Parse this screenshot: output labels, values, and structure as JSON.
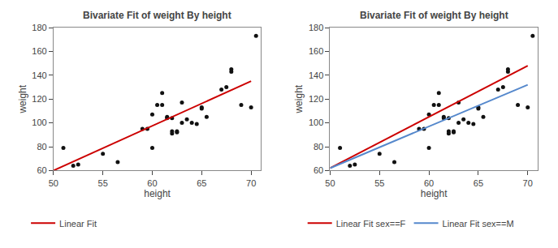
{
  "chart_data": [
    {
      "type": "scatter",
      "title": "Bivariate Fit of weight By height",
      "xlabel": "height",
      "ylabel": "weight",
      "xlim": [
        50,
        71
      ],
      "ylim": [
        60,
        180
      ],
      "xticks": [
        50,
        55,
        60,
        65,
        70
      ],
      "yticks": [
        60,
        80,
        100,
        120,
        140,
        160,
        180
      ],
      "grid": false,
      "legend": "bottom",
      "series": [
        {
          "type": "scatter",
          "marker": "circle",
          "color": "#111111",
          "x": [
            51.0,
            52.0,
            52.5,
            55.0,
            56.5,
            59.0,
            59.5,
            60.0,
            60.0,
            60.5,
            61.0,
            61.0,
            61.5,
            61.5,
            62.0,
            62.0,
            62.0,
            62.5,
            62.5,
            63.0,
            63.0,
            63.5,
            64.0,
            64.5,
            65.0,
            65.0,
            65.5,
            67.0,
            67.5,
            68.0,
            68.0,
            69.0,
            70.0,
            70.5
          ],
          "values": [
            79,
            64,
            65,
            74,
            67,
            95,
            95,
            79,
            107,
            115,
            115,
            125,
            105,
            104,
            91,
            93,
            104,
            92,
            93,
            117,
            100,
            103,
            100,
            99,
            113,
            112,
            105,
            128,
            130,
            143,
            145,
            115,
            113,
            173
          ]
        },
        {
          "type": "line",
          "name": "Linear Fit",
          "color": "#cc0000",
          "x": [
            50,
            70
          ],
          "values": [
            60,
            135
          ]
        }
      ]
    },
    {
      "type": "scatter",
      "title": "Bivariate Fit of weight By height",
      "xlabel": "height",
      "ylabel": "weight",
      "xlim": [
        50,
        71
      ],
      "ylim": [
        60,
        180
      ],
      "xticks": [
        50,
        55,
        60,
        65,
        70
      ],
      "yticks": [
        60,
        80,
        100,
        120,
        140,
        160,
        180
      ],
      "grid": false,
      "legend": "bottom",
      "series": [
        {
          "type": "scatter",
          "marker": "circle",
          "color": "#111111",
          "x": [
            51.0,
            52.0,
            52.5,
            55.0,
            56.5,
            59.0,
            59.5,
            60.0,
            60.0,
            60.5,
            61.0,
            61.0,
            61.5,
            61.5,
            62.0,
            62.0,
            62.0,
            62.5,
            62.5,
            63.0,
            63.0,
            63.5,
            64.0,
            64.5,
            65.0,
            65.0,
            65.5,
            67.0,
            67.5,
            68.0,
            68.0,
            69.0,
            70.0,
            70.5
          ],
          "values": [
            79,
            64,
            65,
            74,
            67,
            95,
            95,
            79,
            107,
            115,
            115,
            125,
            105,
            104,
            91,
            93,
            104,
            92,
            93,
            117,
            100,
            103,
            100,
            99,
            113,
            112,
            105,
            128,
            130,
            143,
            145,
            115,
            113,
            173
          ]
        },
        {
          "type": "line",
          "name": "Linear Fit sex==F",
          "color": "#cc0000",
          "x": [
            50,
            70
          ],
          "values": [
            62,
            148
          ]
        },
        {
          "type": "line",
          "name": "Linear Fit sex==M",
          "color": "#5588cc",
          "x": [
            50,
            70
          ],
          "values": [
            62,
            132
          ]
        }
      ]
    }
  ]
}
